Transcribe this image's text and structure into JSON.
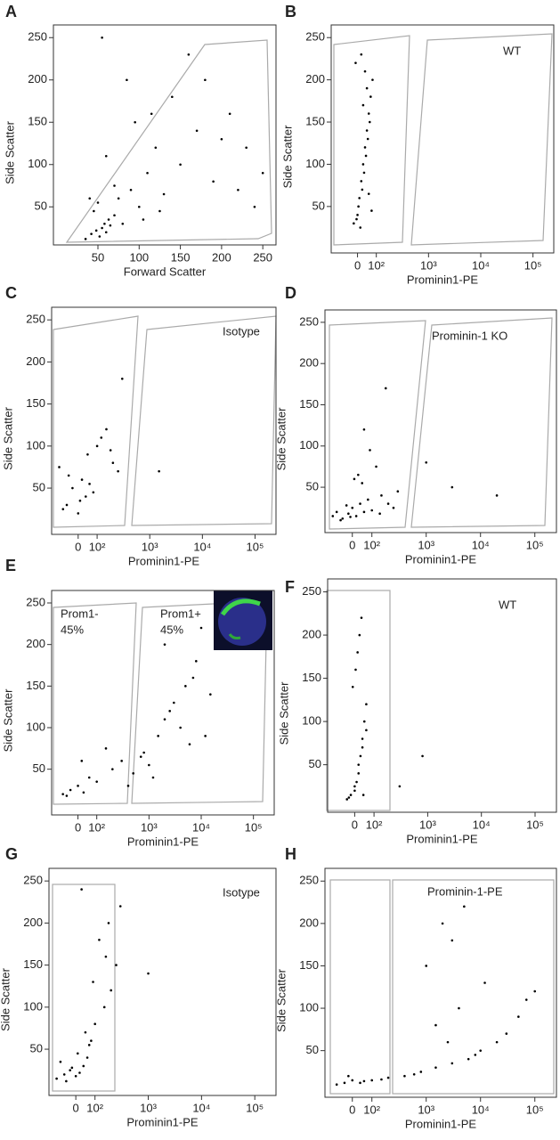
{
  "chart_data": [
    {
      "type": "scatter",
      "panel": "A",
      "xlabel": "Forward Scatter",
      "ylabel": "Side Scatter",
      "xscale": "linear",
      "color": "#000000",
      "xlim": [
        -4,
        266
      ],
      "ylim": [
        5,
        265
      ],
      "xticks": [
        50,
        100,
        150,
        200,
        250
      ],
      "yticks": [
        50,
        100,
        150,
        200,
        250
      ],
      "annotations": [],
      "x": [
        35,
        42,
        48,
        52,
        55,
        58,
        60,
        63,
        65,
        70,
        45,
        50,
        75,
        80,
        90,
        100,
        110,
        120,
        130,
        150,
        170,
        190,
        210,
        230,
        250,
        60,
        85,
        95,
        140,
        180,
        200,
        160,
        70,
        55,
        40,
        105,
        125,
        220,
        240,
        115
      ],
      "values": [
        12,
        18,
        22,
        15,
        25,
        30,
        20,
        35,
        28,
        40,
        45,
        55,
        60,
        30,
        70,
        50,
        90,
        120,
        65,
        100,
        140,
        80,
        160,
        120,
        90,
        110,
        200,
        150,
        180,
        200,
        130,
        230,
        75,
        250,
        60,
        35,
        45,
        70,
        50,
        160
      ]
    },
    {
      "type": "scatter",
      "panel": "B",
      "xlabel": "Prominin1-PE",
      "ylabel": "Side Scatter",
      "xscale": "biexponential",
      "color": "#000000",
      "xlim": [
        -140,
        250000
      ],
      "ylim": [
        -5,
        265
      ],
      "xticks": [
        0,
        {
          "value": 100,
          "label": "10²"
        },
        {
          "value": 1000,
          "label": "10³"
        },
        {
          "value": 10000,
          "label": "10⁴"
        },
        {
          "value": 100000,
          "label": "10⁵"
        }
      ],
      "yticks": [
        50,
        100,
        150,
        200,
        250
      ],
      "annotations": [
        "WT"
      ],
      "x": [
        -20,
        0,
        10,
        20,
        30,
        40,
        50,
        60,
        70,
        80,
        -10,
        5,
        25,
        35,
        45,
        55,
        65,
        15,
        -5,
        75,
        30,
        50,
        40,
        20,
        60
      ],
      "values": [
        30,
        40,
        60,
        80,
        100,
        120,
        140,
        160,
        180,
        200,
        220,
        50,
        70,
        90,
        110,
        130,
        150,
        25,
        35,
        45,
        170,
        190,
        210,
        230,
        65
      ]
    },
    {
      "type": "scatter",
      "panel": "C",
      "xlabel": "Prominin1-PE",
      "ylabel": "Side Scatter",
      "xscale": "biexponential",
      "color": "#000000",
      "xlim": [
        -140,
        250000
      ],
      "ylim": [
        -5,
        265
      ],
      "xticks": [
        0,
        {
          "value": 100,
          "label": "10²"
        },
        {
          "value": 1000,
          "label": "10³"
        },
        {
          "value": 10000,
          "label": "10⁴"
        },
        {
          "value": 100000,
          "label": "10⁵"
        }
      ],
      "yticks": [
        50,
        100,
        150,
        200,
        250
      ],
      "annotations": [
        "Isotype"
      ],
      "x": [
        -100,
        -60,
        -30,
        0,
        20,
        50,
        80,
        100,
        150,
        200,
        250,
        300,
        -80,
        10,
        60,
        120,
        180,
        1500,
        -50,
        40
      ],
      "values": [
        75,
        30,
        50,
        20,
        60,
        90,
        45,
        100,
        120,
        80,
        70,
        180,
        25,
        35,
        55,
        110,
        95,
        70,
        65,
        40
      ]
    },
    {
      "type": "scatter",
      "panel": "D",
      "xlabel": "Prominin1-PE",
      "ylabel": "Side Scatter",
      "xscale": "biexponential",
      "color": "#000000",
      "xlim": [
        -140,
        250000
      ],
      "ylim": [
        -5,
        265
      ],
      "xticks": [
        0,
        {
          "value": 100,
          "label": "10²"
        },
        {
          "value": 1000,
          "label": "10³"
        },
        {
          "value": 10000,
          "label": "10⁴"
        },
        {
          "value": 100000,
          "label": "10⁵"
        }
      ],
      "yticks": [
        50,
        100,
        150,
        200,
        250
      ],
      "annotations": [
        "Prominin-1 KO"
      ],
      "x": [
        -100,
        -80,
        -50,
        -20,
        0,
        20,
        40,
        60,
        80,
        100,
        150,
        200,
        250,
        300,
        -60,
        10,
        50,
        120,
        180,
        -30,
        30,
        90,
        1000,
        3000,
        20000,
        60,
        140,
        -10
      ],
      "values": [
        15,
        20,
        12,
        18,
        25,
        15,
        30,
        20,
        35,
        22,
        40,
        30,
        25,
        45,
        10,
        60,
        55,
        75,
        170,
        28,
        65,
        95,
        80,
        50,
        40,
        120,
        18,
        14
      ]
    },
    {
      "type": "scatter",
      "panel": "E",
      "xlabel": "Prominin1-PE",
      "ylabel": "Side Scatter",
      "xscale": "biexponential",
      "color": "#000000",
      "xlim": [
        -140,
        250000
      ],
      "ylim": [
        -5,
        265
      ],
      "xticks": [
        0,
        {
          "value": 100,
          "label": "10²"
        },
        {
          "value": 1000,
          "label": "10³"
        },
        {
          "value": 10000,
          "label": "10⁴"
        },
        {
          "value": 100000,
          "label": "10⁵"
        }
      ],
      "yticks": [
        50,
        100,
        150,
        200,
        250
      ],
      "annotations": [
        "Prom1-",
        "45%",
        "Prom1+",
        "45%"
      ],
      "x": [
        -80,
        -40,
        0,
        30,
        60,
        100,
        200,
        300,
        500,
        800,
        1000,
        1500,
        2000,
        3000,
        5000,
        8000,
        10000,
        15000,
        2000,
        4000,
        6000,
        -60,
        20,
        150,
        700,
        1200,
        2500,
        7000,
        12000,
        400
      ],
      "values": [
        20,
        25,
        30,
        22,
        40,
        35,
        50,
        60,
        45,
        70,
        55,
        90,
        110,
        130,
        150,
        180,
        220,
        140,
        200,
        100,
        80,
        18,
        60,
        75,
        65,
        40,
        120,
        160,
        90,
        30
      ]
    },
    {
      "type": "scatter",
      "panel": "F",
      "xlabel": "Prominin1-PE",
      "ylabel": "Side Scatter",
      "xscale": "biexponential",
      "color": "#000000",
      "xlim": [
        -140,
        250000
      ],
      "ylim": [
        -5,
        265
      ],
      "xticks": [
        0,
        {
          "value": 100,
          "label": "10²"
        },
        {
          "value": 1000,
          "label": "10³"
        },
        {
          "value": 10000,
          "label": "10⁴"
        },
        {
          "value": 100000,
          "label": "10⁵"
        }
      ],
      "yticks": [
        50,
        100,
        150,
        200,
        250
      ],
      "annotations": [
        "WT"
      ],
      "x": [
        -40,
        -20,
        0,
        10,
        20,
        30,
        40,
        50,
        60,
        -10,
        5,
        15,
        25,
        35,
        45,
        -30,
        0,
        20,
        40,
        60,
        300,
        800
      ],
      "values": [
        10,
        15,
        20,
        30,
        40,
        60,
        80,
        100,
        120,
        140,
        160,
        180,
        200,
        220,
        15,
        12,
        25,
        50,
        70,
        90,
        25,
        60
      ]
    },
    {
      "type": "scatter",
      "panel": "G",
      "xlabel": "Prominin1-PE",
      "ylabel": "Side Scatter",
      "xscale": "biexponential",
      "color": "#000000",
      "xlim": [
        -140,
        250000
      ],
      "ylim": [
        -5,
        265
      ],
      "xticks": [
        0,
        {
          "value": 100,
          "label": "10²"
        },
        {
          "value": 1000,
          "label": "10³"
        },
        {
          "value": 10000,
          "label": "10⁴"
        },
        {
          "value": 100000,
          "label": "10⁵"
        }
      ],
      "yticks": [
        50,
        100,
        150,
        200,
        250
      ],
      "annotations": [
        "Isotype"
      ],
      "x": [
        -100,
        -60,
        -30,
        0,
        20,
        40,
        60,
        80,
        100,
        150,
        200,
        250,
        -80,
        -20,
        10,
        50,
        120,
        180,
        300,
        30,
        70,
        90,
        1000,
        -50,
        160
      ],
      "values": [
        15,
        20,
        25,
        18,
        22,
        30,
        40,
        60,
        80,
        100,
        120,
        150,
        35,
        28,
        45,
        70,
        180,
        200,
        220,
        240,
        55,
        130,
        140,
        12,
        160
      ]
    },
    {
      "type": "scatter",
      "panel": "H",
      "xlabel": "Prominin1-PE",
      "ylabel": "Side Scatter",
      "xscale": "biexponential",
      "color": "#000000",
      "xlim": [
        -140,
        250000
      ],
      "ylim": [
        -5,
        265
      ],
      "xticks": [
        0,
        {
          "value": 100,
          "label": "10²"
        },
        {
          "value": 1000,
          "label": "10³"
        },
        {
          "value": 10000,
          "label": "10⁴"
        },
        {
          "value": 100000,
          "label": "10⁵"
        }
      ],
      "yticks": [
        50,
        100,
        150,
        200,
        250
      ],
      "annotations": [
        "Prominin-1-PE"
      ],
      "x": [
        -80,
        -40,
        0,
        40,
        100,
        200,
        400,
        800,
        1500,
        3000,
        6000,
        10000,
        20000,
        50000,
        100000,
        1000,
        2000,
        3000,
        4000,
        5000,
        1500,
        2500,
        8000,
        30000,
        -20,
        60,
        150,
        600,
        12000,
        70000
      ],
      "values": [
        10,
        12,
        15,
        12,
        15,
        18,
        20,
        25,
        30,
        35,
        40,
        50,
        60,
        90,
        120,
        150,
        200,
        180,
        100,
        220,
        80,
        60,
        45,
        70,
        20,
        14,
        16,
        22,
        130,
        110
      ]
    }
  ]
}
